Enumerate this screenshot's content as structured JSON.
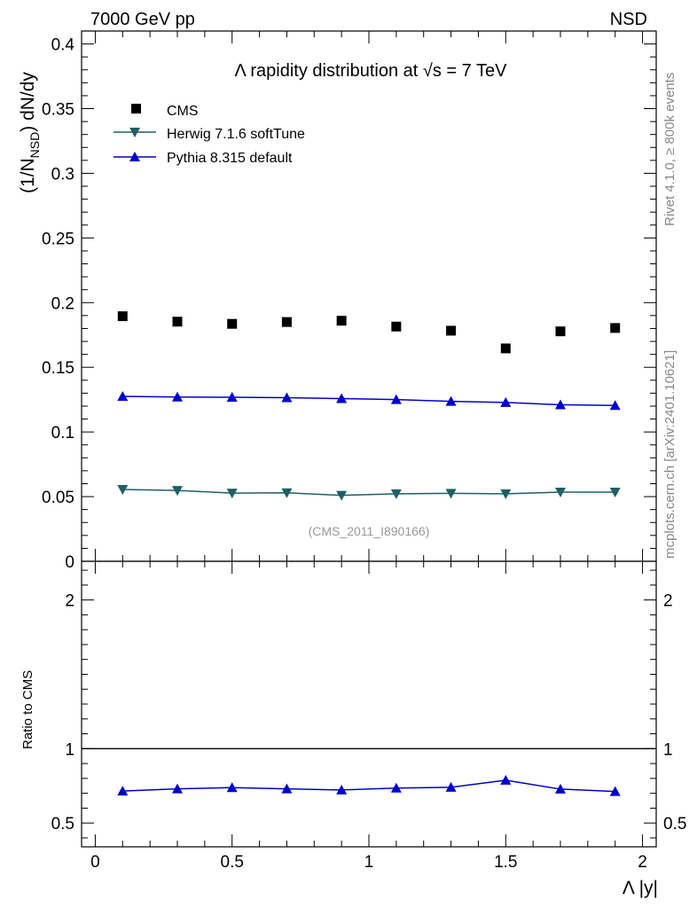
{
  "header": {
    "energy_label": "7000 GeV pp",
    "process_label": "NSD"
  },
  "side_labels": {
    "rivet": "Rivet 4.1.0, ≥ 800k events",
    "mcplots": "mcplots.cern.ch [arXiv:2401.10621]"
  },
  "colors": {
    "cms": "#000000",
    "herwig": "#1f5f66",
    "pythia": "#0000cc",
    "analysis_text": "#999999",
    "side_text": "#888888"
  },
  "chart_data": [
    {
      "type": "scatter",
      "panel": "main",
      "title_prefix": "Λ rapidity distribution at ",
      "title_sqrt": "√s",
      "title_suffix": " = 7 TeV",
      "ylabel": "(1/N_NSD) dN/dy",
      "ylabel_main": "(1/N",
      "ylabel_sub": "NSD",
      "ylabel_tail": ") dN/dy",
      "analysis_id": "(CMS_2011_I890166)",
      "xlim": [
        -0.05,
        2.05
      ],
      "ylim": [
        0,
        0.41
      ],
      "yticks": [
        0,
        0.05,
        0.1,
        0.15,
        0.2,
        0.25,
        0.3,
        0.35,
        0.4
      ],
      "ytick_labels": [
        "0",
        "0.05",
        "0.1",
        "0.15",
        "0.2",
        "0.25",
        "0.3",
        "0.35",
        "0.4"
      ],
      "x": [
        0.1,
        0.3,
        0.5,
        0.7,
        0.9,
        1.1,
        1.3,
        1.5,
        1.7,
        1.9
      ],
      "series": [
        {
          "name": "CMS",
          "marker": "square",
          "line": false,
          "color": "#000000",
          "values": [
            0.1895,
            0.1853,
            0.1836,
            0.185,
            0.186,
            0.1815,
            0.1783,
            0.1646,
            0.1778,
            0.1804
          ]
        },
        {
          "name": "Herwig 7.1.6 softTune",
          "marker": "triangle-down",
          "line": true,
          "color": "#1f5f66",
          "values": [
            0.0555,
            0.0548,
            0.0527,
            0.053,
            0.051,
            0.0522,
            0.0525,
            0.0522,
            0.0535,
            0.0535
          ]
        },
        {
          "name": "Pythia 8.315 default",
          "marker": "triangle-up",
          "line": true,
          "color": "#0000cc",
          "values": [
            0.1275,
            0.127,
            0.1268,
            0.1265,
            0.1258,
            0.125,
            0.1237,
            0.1228,
            0.121,
            0.1205
          ]
        }
      ],
      "legend_position": "top-left"
    },
    {
      "type": "line",
      "panel": "ratio",
      "ylabel": "Ratio to CMS",
      "xlabel": "Λ |y|",
      "xlim": [
        -0.05,
        2.05
      ],
      "ylim": [
        0.34,
        2.26
      ],
      "yticks": [
        0.5,
        1,
        2
      ],
      "ytick_labels": [
        "0.5",
        "1",
        "2"
      ],
      "xticks": [
        0,
        0.5,
        1,
        1.5,
        2
      ],
      "xtick_labels": [
        "0",
        "0.5",
        "1",
        "1.5",
        "2"
      ],
      "reference_line": 1,
      "x": [
        0.1,
        0.3,
        0.5,
        0.7,
        0.9,
        1.1,
        1.3,
        1.5,
        1.7,
        1.9
      ],
      "series": [
        {
          "name": "Pythia 8.315 default",
          "marker": "triangle-up",
          "color": "#0000cc",
          "values": [
            0.715,
            0.73,
            0.738,
            0.73,
            0.722,
            0.735,
            0.74,
            0.788,
            0.728,
            0.712
          ]
        }
      ]
    }
  ]
}
